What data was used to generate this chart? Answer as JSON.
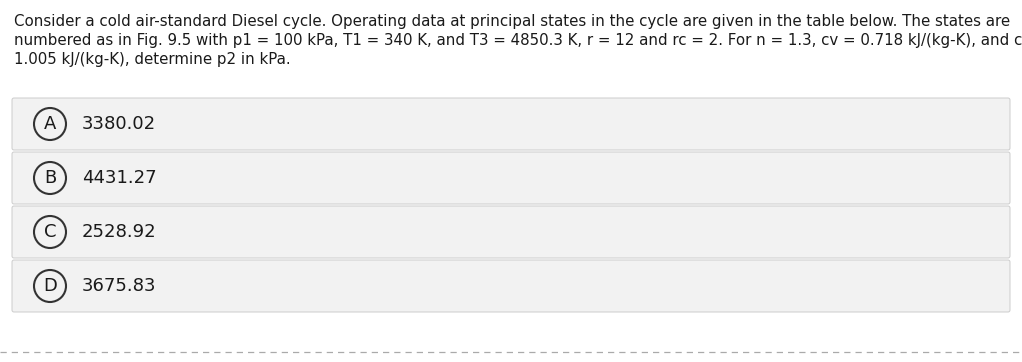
{
  "question_text_line1": "Consider a cold air-standard Diesel cycle. Operating data at principal states in the cycle are given in the table below. The states are",
  "question_text_line2": "numbered as in Fig. 9.5 with p1 = 100 kPa, T1 = 340 K, and T3 = 4850.3 K, r = 12 and rc = 2. For n = 1.3, cv = 0.718 kJ/(kg-K), and cp =",
  "question_text_line3": "1.005 kJ/(kg-K), determine p2 in kPa.",
  "options": [
    {
      "label": "A",
      "text": "3380.02"
    },
    {
      "label": "B",
      "text": "4431.27"
    },
    {
      "label": "C",
      "text": "2528.92"
    },
    {
      "label": "D",
      "text": "3675.83"
    }
  ],
  "bg_color": "#ffffff",
  "option_bg_color": "#f2f2f2",
  "option_border_color": "#cccccc",
  "text_color": "#1a1a1a",
  "circle_color": "#333333",
  "font_size_question": 10.8,
  "font_size_option": 13.0,
  "font_size_label": 13.0,
  "dashed_line_color": "#aaaaaa",
  "fig_width": 10.22,
  "fig_height": 3.62,
  "dpi": 100
}
